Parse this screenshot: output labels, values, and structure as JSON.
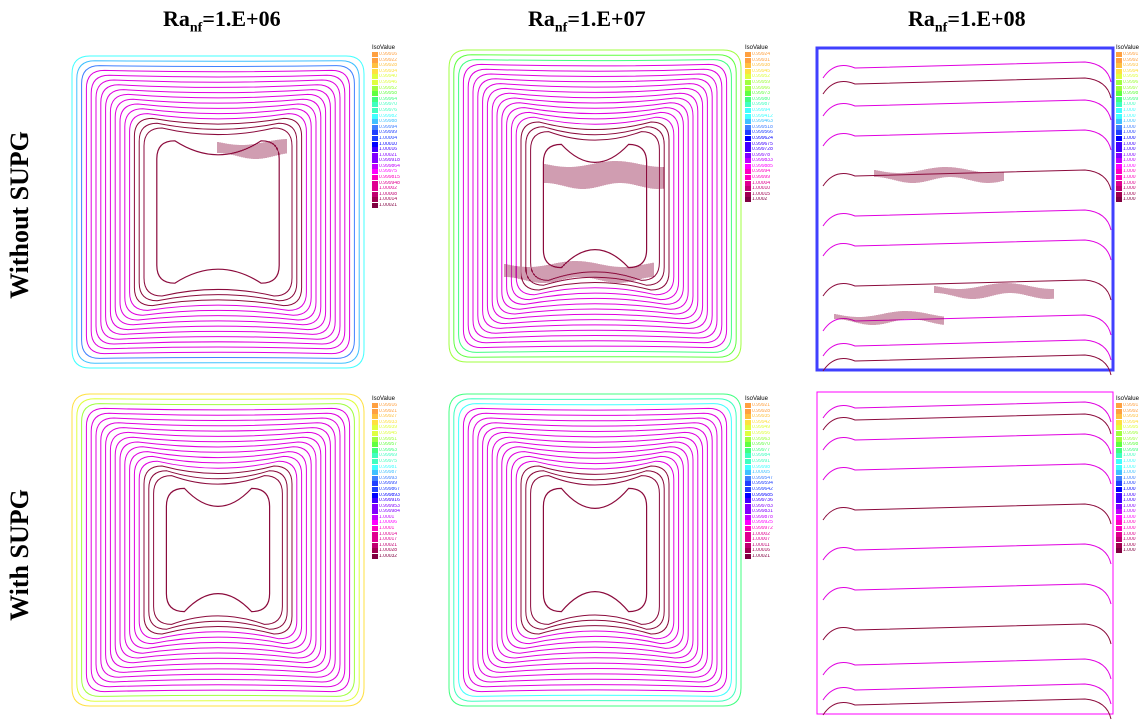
{
  "columns": [
    {
      "base": "Ra",
      "sub": "nf",
      "value": "=1.E+06"
    },
    {
      "base": "Ra",
      "sub": "nf",
      "value": "=1.E+07"
    },
    {
      "base": "Ra",
      "sub": "nf",
      "value": "=1.E+08"
    }
  ],
  "rows": [
    "Without SUPG",
    "With SUPG"
  ],
  "legend_title": "IsoValue",
  "legends": {
    "r0c0": [
      "0.99916",
      "0.99922",
      "0.99928",
      "0.99934",
      "0.99940",
      "0.99946",
      "0.99952",
      "0.99958",
      "0.99964",
      "0.99970",
      "0.99976",
      "0.99982",
      "0.99988",
      "0.99994",
      "0.99999",
      "1.00004",
      "1.00010",
      "1.00016",
      "1.00021",
      "0.999918",
      "0.999864",
      "0.99975",
      "0.999815",
      "0.999948",
      "1.00002",
      "1.00008",
      "1.00014",
      "1.00021"
    ],
    "r0c1": [
      "0.99924",
      "0.99931",
      "0.99938",
      "0.99945",
      "0.99952",
      "0.99959",
      "0.99966",
      "0.99973",
      "0.99980",
      "0.99987",
      "0.99994",
      "0.999412",
      "0.999463",
      "0.999518",
      "0.999566",
      "0.999624",
      "0.999675",
      "0.999728",
      "0.99978",
      "0.999833",
      "0.999885",
      "0.99994",
      "0.99999",
      "1.00004",
      "1.00010",
      "1.00015",
      "1.0002"
    ],
    "r0c2": [
      "0.9991",
      "0.9992",
      "0.9993",
      "0.9994",
      "0.9995",
      "0.9996",
      "0.9997",
      "0.9998",
      "0.9999",
      "1.000",
      "1.000",
      "1.000",
      "1.000",
      "1.000",
      "1.000",
      "1.000",
      "1.000",
      "1.000",
      "1.000",
      "1.000",
      "1.000",
      "1.000",
      "1.000",
      "1.000",
      "1.000",
      "1.000",
      "1.000"
    ],
    "r1c0": [
      "0.99916",
      "0.99921",
      "0.99927",
      "0.99933",
      "0.99939",
      "0.99945",
      "0.99951",
      "0.99957",
      "0.99963",
      "0.99969",
      "0.99975",
      "0.99981",
      "0.99987",
      "0.99993",
      "0.99999",
      "0.999867",
      "0.999893",
      "0.999916",
      "0.999953",
      "0.999984",
      "1.0001",
      "1.00006",
      "1.0001",
      "1.00014",
      "1.00017",
      "1.00021",
      "1.00028",
      "1.00032"
    ],
    "r1c1": [
      "0.99921",
      "0.99928",
      "0.99935",
      "0.99942",
      "0.99949",
      "0.99956",
      "0.99963",
      "0.99970",
      "0.99977",
      "0.99984",
      "0.99991",
      "0.99998",
      "1.00005",
      "0.999547",
      "0.999594",
      "0.999642",
      "0.999685",
      "0.999736",
      "0.999783",
      "0.999831",
      "0.999878",
      "0.999925",
      "0.999972",
      "1.00002",
      "1.00007",
      "1.00011",
      "1.00016",
      "1.00021"
    ],
    "r1c2": [
      "0.9991",
      "0.9992",
      "0.9993",
      "0.9994",
      "0.9995",
      "0.9996",
      "0.9997",
      "0.9998",
      "0.9999",
      "1.000",
      "1.000",
      "1.000",
      "1.000",
      "1.000",
      "1.000",
      "1.000",
      "1.000",
      "1.000",
      "1.000",
      "1.000",
      "1.000",
      "1.000",
      "1.000",
      "1.000",
      "1.000",
      "1.000",
      "1.000"
    ]
  },
  "palette": [
    "#ffa040",
    "#ffc040",
    "#ffe040",
    "#e0ff40",
    "#a0ff40",
    "#60ff40",
    "#40ff80",
    "#40ffc0",
    "#40ffff",
    "#40c0ff",
    "#4080ff",
    "#2040ff",
    "#0000ff",
    "#4000ff",
    "#8000ff",
    "#c000ff",
    "#ff00ff",
    "#ff00c0",
    "#e00090",
    "#c00070",
    "#a00050",
    "#800040"
  ],
  "accent": {
    "streamline": "#8b0a3c"
  }
}
